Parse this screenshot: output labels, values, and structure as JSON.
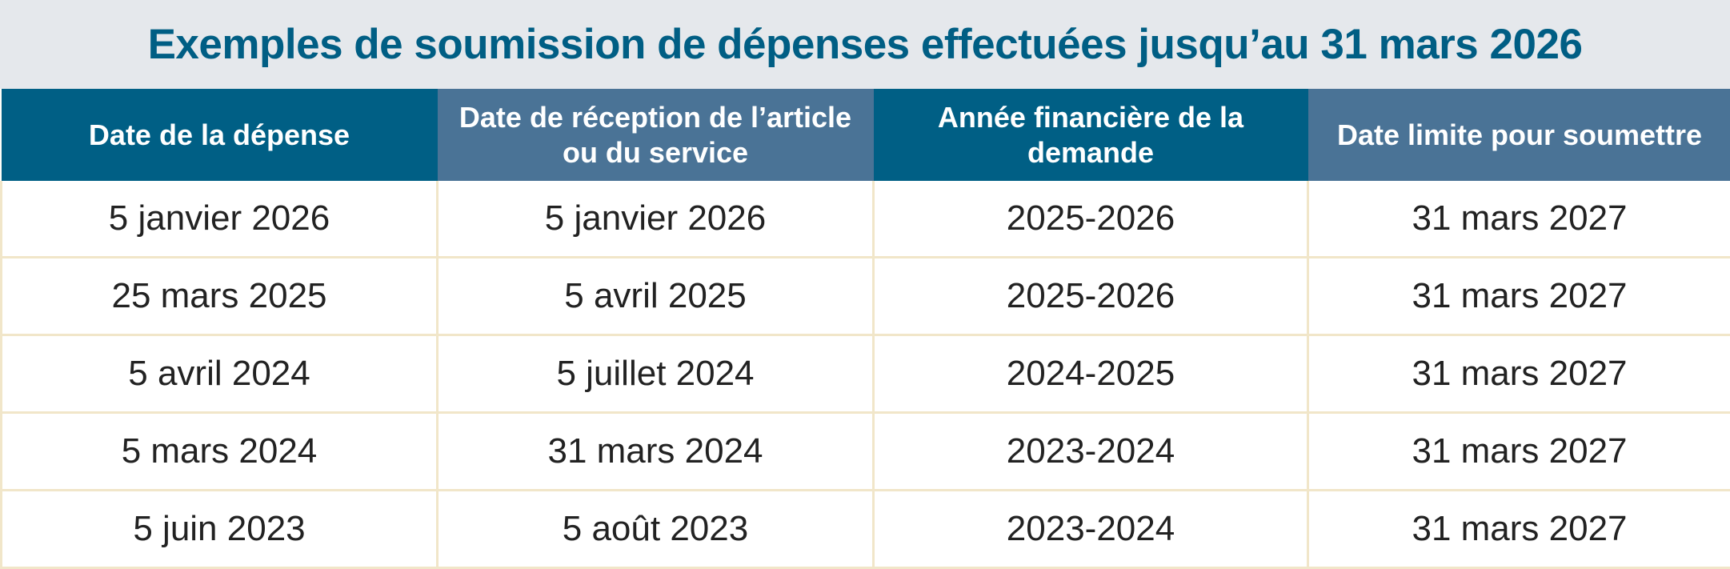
{
  "title": "Exemples de soumission de dépenses effectuées jusqu’au 31 mars 2026",
  "table": {
    "headers": [
      "Date de la dépense",
      "Date de réception de l’article ou du service",
      "Année financière de la demande",
      "Date limite pour soumettre"
    ],
    "rows": [
      [
        "5 janvier 2026",
        "5 janvier 2026",
        "2025-2026",
        "31 mars 2027"
      ],
      [
        "25 mars 2025",
        "5 avril 2025",
        "2025-2026",
        "31 mars 2027"
      ],
      [
        "5 avril 2024",
        "5 juillet 2024",
        "2024-2025",
        "31 mars 2027"
      ],
      [
        "5 mars 2024",
        "31 mars 2024",
        "2023-2024",
        "31 mars 2027"
      ],
      [
        "5 juin 2023",
        "5 août 2023",
        "2023-2024",
        "31 mars 2027"
      ]
    ]
  },
  "colors": {
    "title_text": "#005e84",
    "title_bg": "#e5e8ec",
    "header_dark": "#005f85",
    "header_light": "#4a7396",
    "grid_line": "#f1e6c9"
  }
}
